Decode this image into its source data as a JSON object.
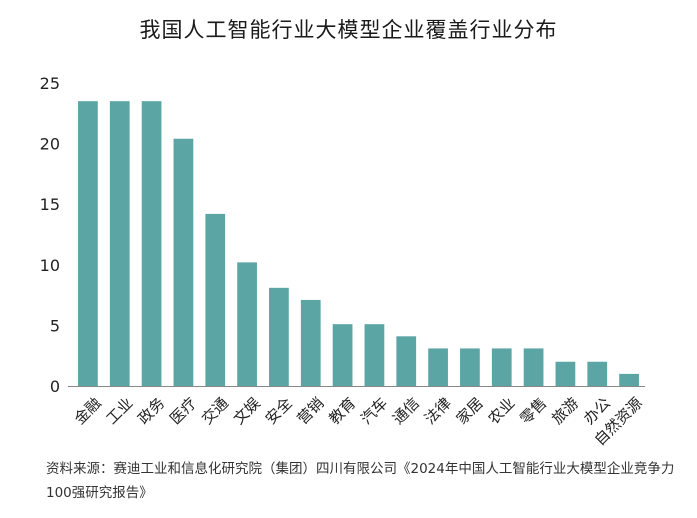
{
  "title": "我国人工智能行业大模型企业覆盖行业分布",
  "source": "资料来源：赛迪工业和信息化研究院（集团）四川有限公司《2024年中国人工智能行业大模型企业竞争力100强研究报告》",
  "colors": {
    "bar": "#5ca5a5",
    "axis": "#888888",
    "text": "#222222"
  },
  "chart_data": {
    "type": "bar",
    "title": "我国人工智能行业大模型企业覆盖行业分布",
    "xlabel": "",
    "ylabel": "",
    "ylim": [
      0,
      25
    ],
    "yticks": [
      0,
      5,
      10,
      15,
      20,
      25
    ],
    "grid": false,
    "categories": [
      "金融",
      "工业",
      "政务",
      "医疗",
      "交通",
      "文娱",
      "安全",
      "营销",
      "教育",
      "汽车",
      "通信",
      "法律",
      "家居",
      "农业",
      "零售",
      "旅游",
      "办公",
      "自然资源"
    ],
    "values": [
      23.5,
      23.5,
      23.5,
      20.4,
      14.2,
      10.2,
      8.1,
      7.1,
      5.1,
      5.1,
      4.1,
      3.1,
      3.1,
      3.1,
      3.1,
      2.0,
      2.0,
      1.0
    ]
  }
}
